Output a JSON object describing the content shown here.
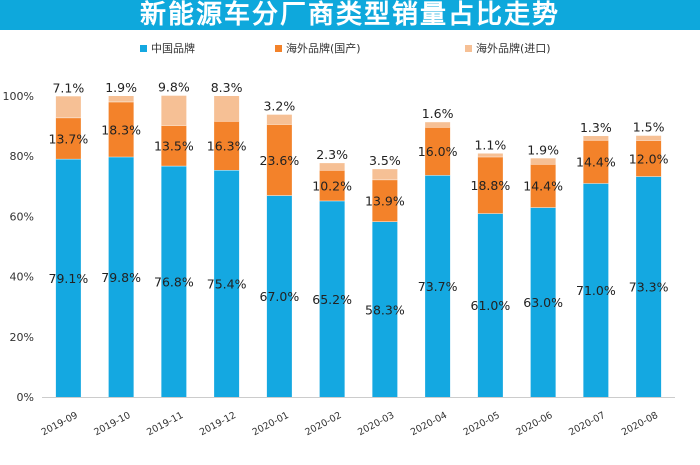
{
  "title": "新能源车分厂商类型销量占比走势",
  "chart_data": {
    "type": "bar",
    "stacked": true,
    "categories": [
      "2019-09",
      "2019-10",
      "2019-11",
      "2019-12",
      "2020-01",
      "2020-02",
      "2020-03",
      "2020-04",
      "2020-05",
      "2020-06",
      "2020-07",
      "2020-08"
    ],
    "series": [
      {
        "name": "中国品牌",
        "color": "#14a8e1",
        "values": [
          79.1,
          79.8,
          76.8,
          75.4,
          67.0,
          65.2,
          58.3,
          73.7,
          61.0,
          63.0,
          71.0,
          73.3
        ],
        "labels": [
          "79.1%",
          "79.8%",
          "76.8%",
          "75.4%",
          "67.0%",
          "65.2%",
          "58.3%",
          "73.7%",
          "61.0%",
          "63.0%",
          "71.0%",
          "73.3%"
        ]
      },
      {
        "name": "海外品牌(国产)",
        "color": "#f3822a",
        "values": [
          13.7,
          18.3,
          13.5,
          16.3,
          23.6,
          10.2,
          13.9,
          16.0,
          18.8,
          14.4,
          14.4,
          12.0
        ],
        "labels": [
          "13.7%",
          "18.3%",
          "13.5%",
          "16.3%",
          "23.6%",
          "10.2%",
          "13.9%",
          "16.0%",
          "18.8%",
          "14.4%",
          "14.4%",
          "12.0%"
        ]
      },
      {
        "name": "海外品牌(进口)",
        "color": "#f6c095",
        "values": [
          7.1,
          1.9,
          9.8,
          8.3,
          3.2,
          2.3,
          3.5,
          1.6,
          1.1,
          1.9,
          1.3,
          1.5
        ],
        "labels": [
          "7.1%",
          "1.9%",
          "9.8%",
          "8.3%",
          "3.2%",
          "2.3%",
          "3.5%",
          "1.6%",
          "1.1%",
          "1.9%",
          "1.3%",
          "1.5%"
        ]
      }
    ],
    "y_ticks": [
      "0%",
      "20%",
      "40%",
      "60%",
      "80%",
      "100%"
    ],
    "ylim": [
      0,
      100
    ],
    "grid": false,
    "legend_position": "top"
  }
}
